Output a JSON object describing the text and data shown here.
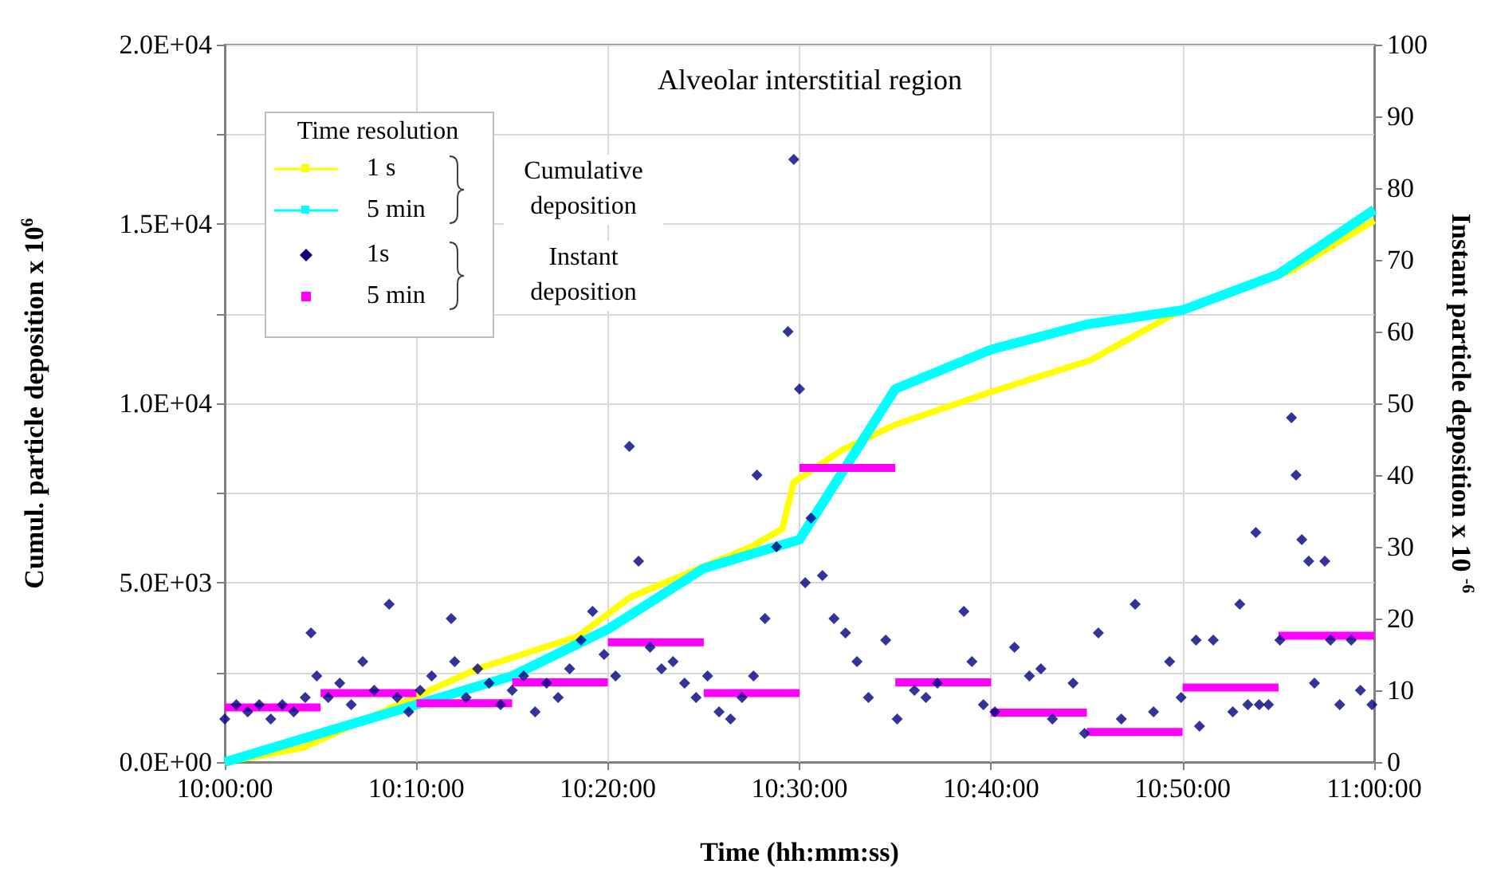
{
  "chart_data": {
    "type": "line",
    "title": "Alveolar interstitial region",
    "xlabel": "Time (hh:mm:ss)",
    "ylabel": "Cumul. particle deposition x 10$^{6}$",
    "y2label": "Instant particle deposition x 10 $^{-6}$",
    "legend_title": "Time resolution",
    "annotations": [
      "Cumulative deposition",
      "Instant deposition"
    ],
    "legend": "top left",
    "grid": true,
    "xlim": [
      10,
      11
    ],
    "xticks": [
      {
        "value": 10,
        "label": "10:00:00"
      },
      {
        "value": 10.1667,
        "label": "10:10:00"
      },
      {
        "value": 10.3333,
        "label": "10:20:00"
      },
      {
        "value": 10.5,
        "label": "10:30:00"
      },
      {
        "value": 10.6667,
        "label": "10:40:00"
      },
      {
        "value": 10.8333,
        "label": "10:50:00"
      },
      {
        "value": 11,
        "label": "11:00:00"
      }
    ],
    "ylim": [
      0,
      20000
    ],
    "yticks": [
      {
        "value": 0,
        "label": "0.0E+00"
      },
      {
        "value": 2500,
        "label": null
      },
      {
        "value": 5000,
        "label": "5.0E+03"
      },
      {
        "value": 7500,
        "label": null
      },
      {
        "value": 10000,
        "label": "1.0E+04"
      },
      {
        "value": 12500,
        "label": null
      },
      {
        "value": 15000,
        "label": "1.5E+04"
      },
      {
        "value": 17500,
        "label": null
      },
      {
        "value": 20000,
        "label": "2.0E+04"
      }
    ],
    "y2lim": [
      0,
      100
    ],
    "y2ticks": [
      0,
      10,
      20,
      30,
      40,
      50,
      60,
      70,
      80,
      90,
      100
    ],
    "series": [
      {
        "name": "1 s",
        "color": "#ffff00",
        "x": [
          10,
          10.068,
          10.22,
          10.307,
          10.353,
          10.398,
          10.458,
          10.485,
          10.495,
          10.537,
          10.583,
          10.665,
          10.753,
          10.832,
          10.928,
          11
        ],
        "values": [
          0,
          400,
          2600,
          3500,
          4600,
          5200,
          6000,
          6500,
          7800,
          8700,
          9400,
          10300,
          11200,
          12600,
          13700,
          15100
        ]
      },
      {
        "name": "5 min",
        "color": "#00ffff",
        "x": [
          10,
          10.0833,
          10.1667,
          10.25,
          10.3333,
          10.4167,
          10.5,
          10.5833,
          10.6667,
          10.75,
          10.8333,
          10.9167,
          11
        ],
        "values": [
          0,
          800,
          1600,
          2400,
          3700,
          5400,
          6200,
          10400,
          11500,
          12200,
          12600,
          13600,
          15400
        ]
      },
      {
        "name": "1s",
        "type": "scatter",
        "axis": "y2",
        "marker": "diamond",
        "color": "#000080",
        "x": [
          10,
          10.01,
          10.02,
          10.03,
          10.04,
          10.05,
          10.06,
          10.07,
          10.075,
          10.08,
          10.09,
          10.1,
          10.11,
          10.12,
          10.13,
          10.143,
          10.15,
          10.16,
          10.17,
          10.18,
          10.197,
          10.2,
          10.21,
          10.22,
          10.23,
          10.24,
          10.25,
          10.26,
          10.27,
          10.28,
          10.29,
          10.3,
          10.31,
          10.32,
          10.33,
          10.34,
          10.352,
          10.36,
          10.37,
          10.38,
          10.39,
          10.4,
          10.41,
          10.42,
          10.43,
          10.44,
          10.45,
          10.46,
          10.463,
          10.47,
          10.48,
          10.49,
          10.495,
          10.5,
          10.505,
          10.51,
          10.52,
          10.53,
          10.54,
          10.55,
          10.56,
          10.575,
          10.585,
          10.6,
          10.61,
          10.62,
          10.643,
          10.65,
          10.66,
          10.67,
          10.687,
          10.7,
          10.71,
          10.72,
          10.738,
          10.748,
          10.76,
          10.78,
          10.792,
          10.808,
          10.822,
          10.832,
          10.845,
          10.848,
          10.86,
          10.877,
          10.883,
          10.89,
          10.9,
          10.897,
          10.908,
          10.918,
          10.928,
          10.932,
          10.937,
          10.943,
          10.948,
          10.957,
          10.962,
          10.97,
          10.98,
          10.988,
          10.998
        ],
        "values": [
          6,
          8,
          7,
          8,
          6,
          8,
          7,
          9,
          18,
          12,
          9,
          11,
          8,
          14,
          10,
          22,
          9,
          7,
          10,
          12,
          20,
          14,
          9,
          13,
          11,
          8,
          10,
          12,
          7,
          11,
          9,
          13,
          17,
          21,
          15,
          12,
          44,
          28,
          16,
          13,
          14,
          11,
          9,
          12,
          7,
          6,
          9,
          12,
          40,
          20,
          30,
          60,
          84,
          52,
          25,
          34,
          26,
          20,
          18,
          14,
          9,
          17,
          6,
          10,
          9,
          11,
          21,
          14,
          8,
          7,
          16,
          12,
          13,
          6,
          11,
          4,
          18,
          6,
          22,
          7,
          14,
          9,
          17,
          5,
          17,
          7,
          22,
          8,
          8,
          32,
          8,
          17,
          48,
          40,
          31,
          28,
          11,
          28,
          17,
          8,
          17,
          10,
          8
        ]
      },
      {
        "name": "5 min",
        "type": "step",
        "axis": "y2",
        "color": "#ff00ff",
        "x": [
          10,
          10.0833,
          10.1667,
          10.25,
          10.3333,
          10.4167,
          10.5,
          10.5833,
          10.6667,
          10.75,
          10.8333,
          10.9167,
          11
        ],
        "values": [
          7.6,
          9.6,
          8.2,
          11.1,
          16.7,
          9.6,
          41,
          11.1,
          6.9,
          4.2,
          10.4,
          17.6,
          17.6
        ]
      }
    ]
  }
}
